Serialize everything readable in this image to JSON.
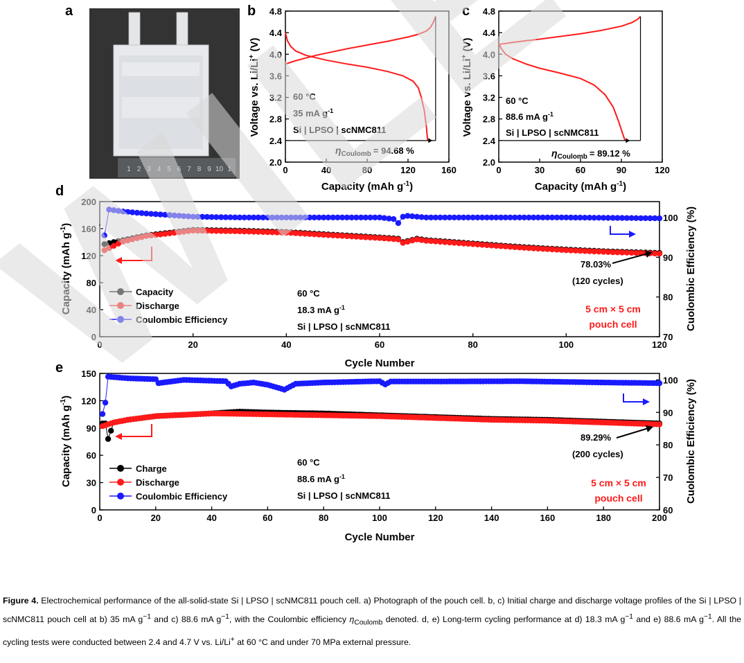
{
  "colors": {
    "red": "#ff1a1a",
    "blue": "#1a1aff",
    "black": "#000000",
    "watermark": "#d9d9d9"
  },
  "watermark_text": "WILEY",
  "panel_a": {
    "letter": "a",
    "ruler_labels": [
      "1",
      "2",
      "3",
      "4",
      "5",
      "6",
      "7",
      "8",
      "9",
      "10",
      "1"
    ]
  },
  "panel_b": {
    "letter": "b",
    "ylabel_parts": [
      "Voltage vs. Li/Li",
      "+",
      " (V)"
    ],
    "xlabel_parts": [
      "Capacity (mAh g",
      "-1",
      ")"
    ],
    "ann": [
      "60 °C",
      "35 mA g",
      "-1",
      "Si | LPSO | scNMC811"
    ],
    "eta_label": "η",
    "eta_sub": "Coulomb",
    "eta_value": "= 94.68 %"
  },
  "panel_c": {
    "letter": "c",
    "ylabel_parts": [
      "Voltage vs. Li/Li",
      "+",
      " (V)"
    ],
    "xlabel_parts": [
      "Capacity (mAh g",
      "-1",
      ")"
    ],
    "ann": [
      "60 °C",
      "88.6 mA g",
      "-1",
      "Si | LPSO | scNMC811"
    ],
    "eta_label": "η",
    "eta_sub": "Coulomb",
    "eta_value": "= 89.12 %"
  },
  "panel_d": {
    "letter": "d",
    "ylabel_parts": [
      "Capacity (mAh g",
      "-1",
      ")"
    ],
    "y2label": "Cuolombic Efficiency (%)",
    "xlabel": "Cycle Number",
    "legend": [
      "Capacity",
      "Discharge",
      "Coulombic Efficiency"
    ],
    "ann": [
      "60 °C",
      "18.3 mA g",
      "-1",
      "Si | LPSO | scNMC811"
    ],
    "retention": [
      "78.03%",
      "(120 cycles)"
    ],
    "pouch": [
      "5 cm × 5 cm",
      "pouch cell"
    ]
  },
  "panel_e": {
    "letter": "e",
    "ylabel_parts": [
      "Capacity (mAh g",
      "-1",
      ")"
    ],
    "y2label": "Cuolombic Efficiency (%)",
    "xlabel": "Cycle Number",
    "legend": [
      "Charge",
      "Discharge",
      "Coulombic Efficiency"
    ],
    "ann": [
      "60 °C",
      "88.6 mA g",
      "-1",
      "Si | LPSO | scNMC811"
    ],
    "retention": [
      "89.29%",
      "(200 cycles)"
    ],
    "pouch": [
      "5 cm × 5 cm",
      "pouch cell"
    ]
  },
  "chart_data": [
    {
      "id": "b",
      "type": "line",
      "xlim": [
        0,
        160
      ],
      "ylim": [
        2.0,
        4.8
      ],
      "xticks": [
        0,
        40,
        80,
        120,
        160
      ],
      "yticks": [
        2.0,
        2.4,
        2.8,
        3.2,
        3.6,
        4.0,
        4.4,
        4.8
      ],
      "series": [
        {
          "role": "charge",
          "x": [
            0,
            2,
            5,
            10,
            20,
            30,
            40,
            60,
            80,
            100,
            120,
            130,
            138,
            142,
            145,
            147
          ],
          "y": [
            3.82,
            3.83,
            3.85,
            3.88,
            3.93,
            3.98,
            4.02,
            4.1,
            4.17,
            4.24,
            4.32,
            4.37,
            4.43,
            4.5,
            4.6,
            4.7
          ]
        },
        {
          "role": "discharge",
          "x": [
            0,
            2,
            5,
            10,
            20,
            40,
            60,
            80,
            100,
            115,
            125,
            130,
            133,
            136,
            138,
            139.2
          ],
          "y": [
            4.4,
            4.25,
            4.15,
            4.06,
            3.98,
            3.89,
            3.82,
            3.76,
            3.68,
            3.6,
            3.5,
            3.38,
            3.2,
            2.95,
            2.65,
            2.4
          ]
        }
      ]
    },
    {
      "id": "c",
      "type": "line",
      "xlim": [
        0,
        120
      ],
      "ylim": [
        2.0,
        4.8
      ],
      "xticks": [
        0,
        30,
        60,
        90,
        120
      ],
      "yticks": [
        2.0,
        2.4,
        2.8,
        3.2,
        3.6,
        4.0,
        4.4,
        4.8
      ],
      "series": [
        {
          "role": "charge",
          "x": [
            0,
            2,
            5,
            10,
            20,
            30,
            45,
            60,
            75,
            90,
            98,
            102,
            104
          ],
          "y": [
            4.18,
            4.19,
            4.2,
            4.22,
            4.25,
            4.28,
            4.33,
            4.38,
            4.44,
            4.52,
            4.59,
            4.65,
            4.7
          ]
        },
        {
          "role": "discharge",
          "x": [
            0,
            2,
            5,
            10,
            20,
            30,
            45,
            60,
            70,
            78,
            84,
            88,
            91,
            92.7
          ],
          "y": [
            4.2,
            4.1,
            4.0,
            3.92,
            3.82,
            3.74,
            3.65,
            3.55,
            3.43,
            3.25,
            3.02,
            2.75,
            2.52,
            2.4
          ]
        }
      ]
    },
    {
      "id": "d",
      "type": "scatter",
      "xlim": [
        0,
        120
      ],
      "ylim": [
        0,
        200
      ],
      "y2lim": [
        70,
        104
      ],
      "xticks": [
        0,
        20,
        40,
        60,
        80,
        100,
        120
      ],
      "yticks": [
        0,
        40,
        80,
        120,
        160,
        200
      ],
      "y2ticks": [
        70,
        80,
        90,
        100
      ],
      "series": [
        {
          "role": "charge",
          "axis": "left",
          "cycles": [
            1,
            120
          ],
          "x": [
            1,
            5,
            10,
            20,
            30,
            40,
            50,
            60,
            64,
            65,
            68,
            70,
            80,
            90,
            100,
            110,
            120
          ],
          "y": [
            137,
            143,
            150,
            158,
            157,
            155,
            151,
            147,
            145,
            140,
            145,
            143,
            138,
            133,
            129,
            126,
            124
          ]
        },
        {
          "role": "discharge",
          "axis": "left",
          "cycles": [
            1,
            120
          ],
          "x": [
            1,
            5,
            10,
            20,
            30,
            40,
            50,
            60,
            64,
            65,
            68,
            70,
            80,
            90,
            100,
            110,
            120
          ],
          "y": [
            128,
            141,
            149,
            157,
            156,
            154,
            150,
            146,
            144,
            139,
            144,
            142,
            137,
            132,
            128,
            125,
            123
          ]
        },
        {
          "role": "coulombic_efficiency",
          "axis": "right",
          "cycles": [
            1,
            120
          ],
          "x": [
            1,
            2,
            5,
            10,
            20,
            30,
            40,
            60,
            63,
            64,
            65,
            66,
            70,
            80,
            100,
            120
          ],
          "y": [
            95.5,
            102.0,
            101.5,
            101.0,
            100.2,
            100.0,
            100.0,
            100.0,
            99.6,
            98.6,
            100.2,
            100.4,
            100.0,
            100.0,
            100.0,
            99.8
          ]
        }
      ]
    },
    {
      "id": "e",
      "type": "scatter",
      "xlim": [
        0,
        200
      ],
      "ylim": [
        0,
        150
      ],
      "y2lim": [
        60,
        102
      ],
      "xticks": [
        0,
        20,
        40,
        60,
        80,
        100,
        120,
        140,
        160,
        180,
        200
      ],
      "yticks": [
        0,
        30,
        60,
        90,
        120,
        150
      ],
      "y2ticks": [
        60,
        70,
        80,
        90,
        100
      ],
      "series": [
        {
          "role": "charge",
          "axis": "left",
          "cycles": [
            1,
            200
          ],
          "x": [
            1,
            2,
            3,
            5,
            10,
            20,
            40,
            50,
            60,
            80,
            100,
            120,
            140,
            160,
            180,
            200
          ],
          "y": [
            95,
            95,
            78,
            96,
            99,
            103,
            106,
            108,
            107,
            106,
            104,
            102,
            100,
            99,
            97,
            95
          ]
        },
        {
          "role": "discharge",
          "axis": "left",
          "cycles": [
            1,
            200
          ],
          "x": [
            1,
            5,
            10,
            20,
            40,
            60,
            80,
            100,
            120,
            140,
            160,
            180,
            200
          ],
          "y": [
            92,
            96,
            99,
            103,
            106,
            105,
            104,
            103,
            101,
            99,
            98,
            96,
            94
          ]
        },
        {
          "role": "coulombic_efficiency",
          "axis": "right",
          "cycles": [
            1,
            200
          ],
          "x": [
            1,
            2,
            3,
            10,
            20,
            21,
            30,
            45,
            47,
            50,
            55,
            60,
            66,
            70,
            80,
            100,
            102,
            104,
            120,
            150,
            180,
            200
          ],
          "y": [
            89.5,
            93,
            101,
            100.5,
            100.2,
            99,
            100,
            99.6,
            98,
            98.8,
            99.2,
            98.5,
            97,
            98.8,
            99.2,
            99.6,
            98.6,
            99.5,
            99.5,
            99.6,
            99.2,
            99.0
          ]
        }
      ]
    }
  ],
  "caption": {
    "label": "Figure 4.",
    "segments": [
      " Electrochemical performance of the all-solid-state Si | LPSO | scNMC811 pouch cell. a) Photograph of the pouch cell. b, c) Initial charge and discharge voltage profiles of the Si | LPSO | scNMC811 pouch cell at b) 35 mA g",
      "−1",
      " and c) 88.6 mA g",
      "−1",
      ", with the Coulombic efficiency ",
      "η",
      "Coulomb",
      " denoted. d, e) Long-term cycling performance at d) 18.3 mA g",
      "−1",
      " and e) 88.6 mA g",
      "−1",
      ". All the cycling tests were conducted between 2.4 and 4.7 V vs. Li/Li",
      "+",
      " at 60 °C and under 70 MPa external pressure."
    ]
  }
}
